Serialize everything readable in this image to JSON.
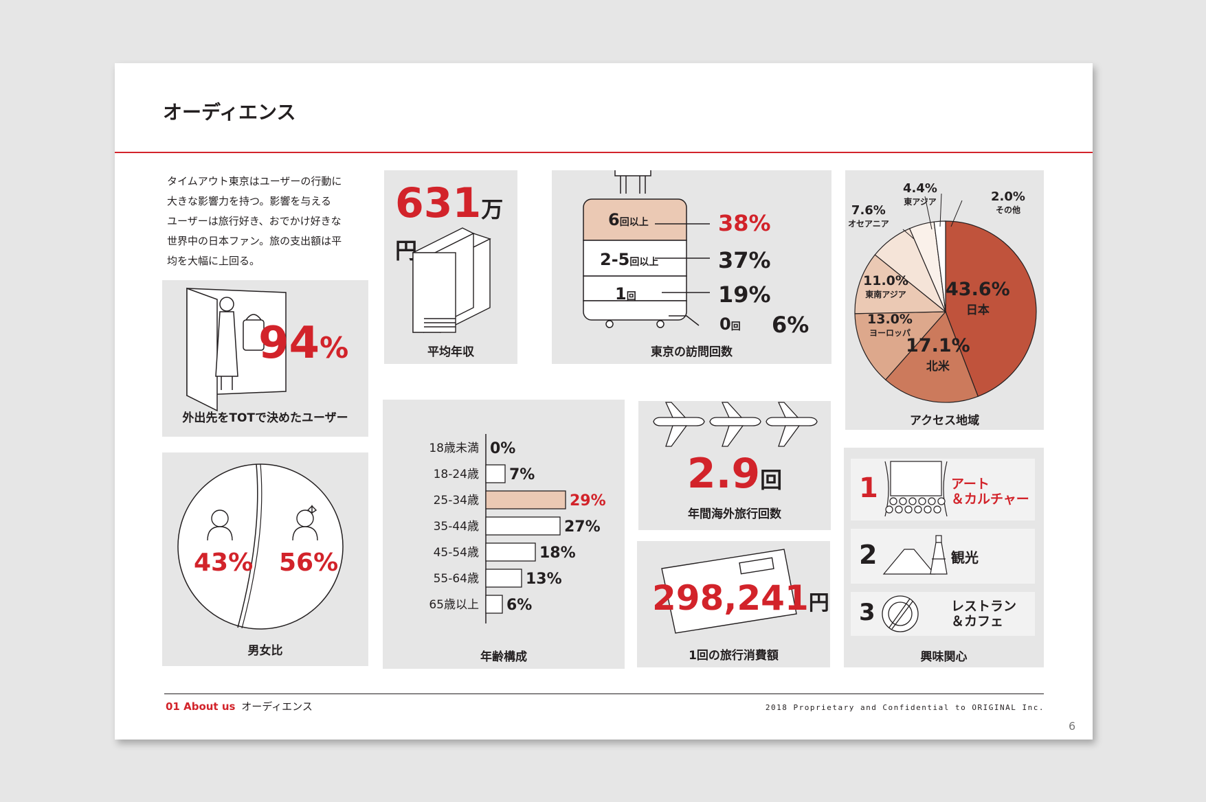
{
  "title": "オーディエンス",
  "intro": [
    "タイムアウト東京はユーザーの行動に",
    "大きな影響力を持つ。影響を与える",
    "ユーザーは旅行好き、おでかけ好きな",
    "世界中の日本ファン。旅の支出額は平",
    "均を大幅に上回る。"
  ],
  "tot": {
    "value": "94",
    "unit": "%",
    "caption": "外出先をTOTで決めたユーザー"
  },
  "gender": {
    "male": "43%",
    "female": "56%",
    "caption": "男女比"
  },
  "income": {
    "value": "631",
    "unit": "万円",
    "caption": "平均年収"
  },
  "visits": {
    "rows": [
      {
        "label": "6",
        "unit": "回以上",
        "pct": "38%"
      },
      {
        "label": "2-5",
        "unit": "回以上",
        "pct": "37%"
      },
      {
        "label": "1",
        "unit": "回",
        "pct": "19%"
      },
      {
        "label": "0",
        "unit": "回",
        "pct": "6%"
      }
    ],
    "caption": "東京の訪問回数"
  },
  "age": {
    "caption": "年齢構成",
    "rows": [
      {
        "label": "18歳未満",
        "value": 0,
        "text": "0%"
      },
      {
        "label": "18-24歳",
        "value": 7,
        "text": "7%"
      },
      {
        "label": "25-34歳",
        "value": 29,
        "text": "29%"
      },
      {
        "label": "35-44歳",
        "value": 27,
        "text": "27%"
      },
      {
        "label": "45-54歳",
        "value": 18,
        "text": "18%"
      },
      {
        "label": "55-64歳",
        "value": 13,
        "text": "13%"
      },
      {
        "label": "65歳以上",
        "value": 6,
        "text": "6%"
      }
    ]
  },
  "trips": {
    "value": "2.9",
    "unit": "回",
    "caption": "年間海外旅行回数"
  },
  "spend": {
    "value": "298,241",
    "unit": "円",
    "caption": "1回の旅行消費額"
  },
  "chart_data": {
    "type": "pie",
    "caption": "アクセス地域",
    "slices": [
      {
        "name": "日本",
        "value": 43.6,
        "label": "43.6%",
        "color": "#c0533c"
      },
      {
        "name": "北米",
        "value": 17.1,
        "label": "17.1%",
        "color": "#cc7a5c"
      },
      {
        "name": "ヨーロッパ",
        "value": 13.0,
        "label": "13.0%",
        "color": "#dda88c"
      },
      {
        "name": "東南アジア",
        "value": 11.0,
        "label": "11.0%",
        "color": "#ebc9b4"
      },
      {
        "name": "オセアニア",
        "value": 7.6,
        "label": "7.6%",
        "color": "#f5e4d8"
      },
      {
        "name": "東アジア",
        "value": 4.4,
        "label": "4.4%",
        "color": "#faf1ea"
      },
      {
        "name": "その他",
        "value": 2.0,
        "label": "2.0%",
        "color": "#ffffff"
      }
    ]
  },
  "interests": {
    "caption": "興味関心",
    "items": [
      {
        "rank": "1",
        "line1": "アート",
        "line2": "＆カルチャー"
      },
      {
        "rank": "2",
        "line1": "観光",
        "line2": ""
      },
      {
        "rank": "3",
        "line1": "レストラン",
        "line2": "＆カフェ"
      }
    ]
  },
  "footer": {
    "section": "01 About us",
    "section_title": "オーディエンス",
    "copyright": "2018 Proprietary and Confidential to ORIGINAL Inc.",
    "page": "6"
  }
}
